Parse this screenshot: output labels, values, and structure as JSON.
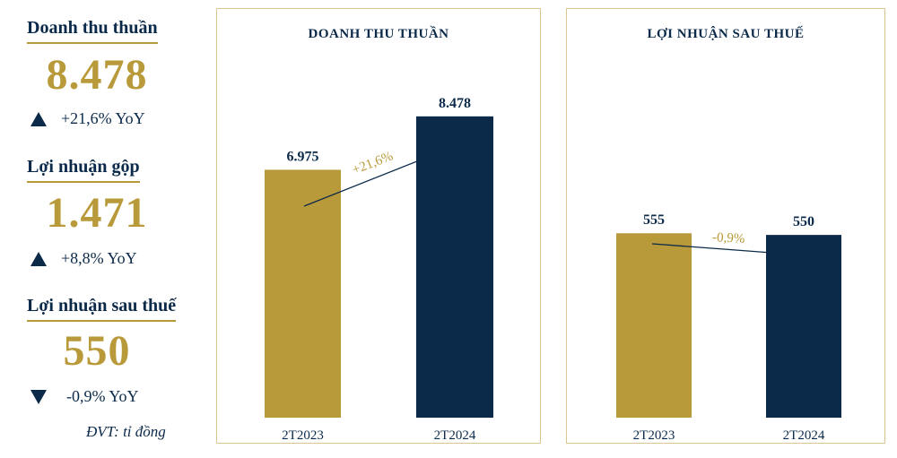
{
  "kpis": [
    {
      "title": "Doanh thu thuần",
      "value": "8.478",
      "change": "+21,6% YoY",
      "direction": "up"
    },
    {
      "title": "Lợi nhuận gộp",
      "value": "1.471",
      "change": "+8,8% YoY",
      "direction": "up"
    },
    {
      "title": "Lợi nhuận sau thuế",
      "value": "550",
      "change": "-0,9% YoY",
      "direction": "down"
    }
  ],
  "unit_note": "ĐVT: tỉ đồng",
  "colors": {
    "gold": "#b99a3a",
    "navy": "#0b2a4a",
    "border": "#d9c690"
  },
  "chart_data": [
    {
      "type": "bar",
      "title": "DOANH THU THUẦN",
      "categories": [
        "2T2023",
        "2T2024"
      ],
      "values": [
        6975,
        8478
      ],
      "value_labels": [
        "6.975",
        "8.478"
      ],
      "growth_label": "+21,6%",
      "ylim": [
        0,
        11500
      ],
      "grid": false
    },
    {
      "type": "bar",
      "title": "LỢI NHUẬN SAU THUẾ",
      "categories": [
        "2T2023",
        "2T2024"
      ],
      "values": [
        555,
        550
      ],
      "value_labels": [
        "555",
        "550"
      ],
      "growth_label": "-0,9%",
      "ylim": [
        0,
        1230
      ],
      "grid": false
    }
  ]
}
